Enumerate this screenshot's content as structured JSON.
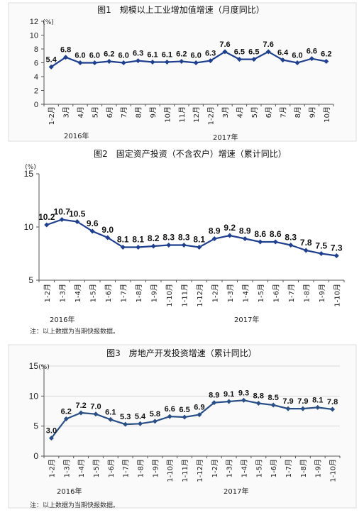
{
  "chart_data": [
    {
      "type": "line",
      "title": "图1　规模以上工业增加值增速（月度同比）",
      "ylabel": "(%)",
      "ylim": [
        0,
        12
      ],
      "yticks": [
        0,
        2,
        4,
        6,
        8,
        10,
        12
      ],
      "categories": [
        "1-2月",
        "3月",
        "4月",
        "5月",
        "6月",
        "7月",
        "8月",
        "9月",
        "10月",
        "11月",
        "12月",
        "1-2月",
        "3月",
        "4月",
        "5月",
        "6月",
        "7月",
        "8月",
        "9月",
        "10月"
      ],
      "values": [
        5.4,
        6.8,
        6.0,
        6.0,
        6.2,
        6.0,
        6.3,
        6.1,
        6.1,
        6.2,
        6.0,
        6.3,
        7.6,
        6.5,
        6.5,
        7.6,
        6.4,
        6.0,
        6.6,
        6.2
      ],
      "labels": [
        "5.4",
        "6.8",
        "6.0",
        "6.0",
        "6.2",
        "6.0",
        "6.3",
        "6.1",
        "6.1",
        "6.2",
        "6.0",
        "6.3",
        "7.6",
        "6.5",
        "6.5",
        "7.6",
        "6.4",
        "6.0",
        "6.6",
        "6.2"
      ],
      "year_labels": [
        "2016年",
        "2017年"
      ],
      "grid": false,
      "color": "#1f3f8f",
      "note": ""
    },
    {
      "type": "line",
      "title": "图2　固定资产投资（不含农户）增速（累计同比）",
      "ylabel": "(%)",
      "ylim": [
        5,
        15
      ],
      "yticks": [
        5,
        10,
        15
      ],
      "categories": [
        "1-2月",
        "1-3月",
        "1-4月",
        "1-5月",
        "1-6月",
        "1-7月",
        "1-8月",
        "1-9月",
        "1-10月",
        "1-11月",
        "1-12月",
        "1-2月",
        "1-3月",
        "1-4月",
        "1-5月",
        "1-6月",
        "1-7月",
        "1-8月",
        "1-9月",
        "1-10月"
      ],
      "values": [
        10.2,
        10.7,
        10.5,
        9.6,
        9.0,
        8.1,
        8.1,
        8.2,
        8.3,
        8.3,
        8.1,
        8.9,
        9.2,
        8.9,
        8.6,
        8.6,
        8.3,
        7.8,
        7.5,
        7.3
      ],
      "labels": [
        "10.2",
        "10.7",
        "10.5",
        "9.6",
        "9.0",
        "8.1",
        "8.1",
        "8.2",
        "8.3",
        "8.3",
        "8.1",
        "8.9",
        "9.2",
        "8.9",
        "8.6",
        "8.6",
        "8.3",
        "7.8",
        "7.5",
        "7.3"
      ],
      "year_labels": [
        "2016年",
        "2017年"
      ],
      "grid": false,
      "color": "#1f3f8f",
      "note": "注：以上数据为当期快报数据。"
    },
    {
      "type": "line",
      "title": "图3　房地产开发投资增速（累计同比）",
      "ylabel": "(%)",
      "ylim": [
        0,
        15
      ],
      "yticks": [
        0,
        5,
        10,
        15
      ],
      "categories": [
        "1-2月",
        "1-3月",
        "1-4月",
        "1-5月",
        "1-6月",
        "1-7月",
        "1-8月",
        "1-9月",
        "1-10月",
        "1-11月",
        "1-12月",
        "1-2月",
        "1-3月",
        "1-4月",
        "1-5月",
        "1-6月",
        "1-7月",
        "1-8月",
        "1-9月",
        "1-10月"
      ],
      "values": [
        3.0,
        6.2,
        7.2,
        7.0,
        6.1,
        5.3,
        5.4,
        5.8,
        6.6,
        6.5,
        6.9,
        8.9,
        9.1,
        9.3,
        8.8,
        8.5,
        7.9,
        7.9,
        8.1,
        7.8
      ],
      "labels": [
        "3.0",
        "6.2",
        "7.2",
        "7.0",
        "6.1",
        "5.3",
        "5.4",
        "5.8",
        "6.6",
        "6.5",
        "6.9",
        "8.9",
        "9.1",
        "9.3",
        "8.8",
        "8.5",
        "7.9",
        "7.9",
        "8.1",
        "7.8"
      ],
      "year_labels": [
        "2016年",
        "2017年"
      ],
      "grid": true,
      "color": "#2a4f86",
      "note": "注：以上数据为当期快报数据。"
    }
  ]
}
